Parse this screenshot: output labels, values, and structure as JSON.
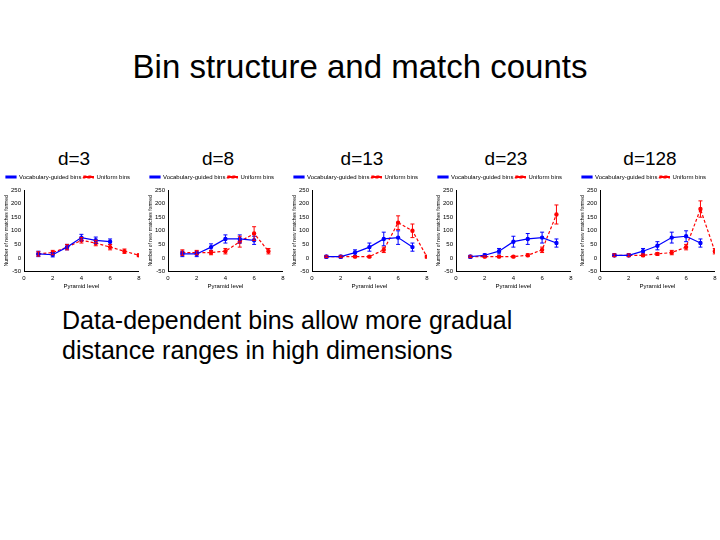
{
  "header": {
    "title": "Bin structure and match counts"
  },
  "caption": [
    "Data-dependent bins allow more gradual",
    "distance ranges in high dimensions"
  ],
  "chart_data": [
    {
      "type": "line",
      "title": "d=3",
      "x_label": "Pyramid level",
      "y_label": "Number of new matches formed",
      "x": [
        1,
        2,
        3,
        4,
        5,
        6,
        7,
        8
      ],
      "series": [
        {
          "name": "Vocabulary-guided bins",
          "color": "#0000ff",
          "line_style": "solid",
          "marker": "circle",
          "values": [
            15,
            12,
            40,
            75,
            65,
            60,
            null,
            null
          ],
          "error": [
            10,
            8,
            10,
            12,
            12,
            10,
            null,
            null
          ]
        },
        {
          "name": "Uniform bins",
          "color": "#ff0000",
          "line_style": "dashed",
          "marker": "circle",
          "values": [
            15,
            20,
            40,
            65,
            55,
            40,
            25,
            10
          ],
          "error": [
            8,
            8,
            10,
            10,
            10,
            10,
            8,
            5
          ]
        }
      ],
      "xlim": [
        0,
        8
      ],
      "xticks": [
        0,
        2,
        4,
        6,
        8
      ],
      "ylim": [
        -50,
        250
      ],
      "yticks": [
        -50,
        0,
        50,
        100,
        150,
        200,
        250
      ],
      "grid": false,
      "legend": "upper left"
    },
    {
      "type": "line",
      "title": "d=8",
      "x_label": "Pyramid level",
      "y_label": "Number of new matches formed",
      "x": [
        1,
        2,
        3,
        4,
        5,
        6,
        7,
        8
      ],
      "series": [
        {
          "name": "Vocabulary-guided bins",
          "color": "#0000ff",
          "line_style": "solid",
          "marker": "circle",
          "values": [
            15,
            15,
            40,
            70,
            70,
            65,
            null,
            null
          ],
          "error": [
            10,
            10,
            12,
            15,
            15,
            15,
            null,
            null
          ]
        },
        {
          "name": "Uniform bins",
          "color": "#ff0000",
          "line_style": "dashed",
          "marker": "circle",
          "values": [
            20,
            20,
            20,
            25,
            60,
            90,
            25,
            null
          ],
          "error": [
            10,
            8,
            8,
            10,
            20,
            25,
            10,
            null
          ]
        }
      ],
      "xlim": [
        0,
        8
      ],
      "xticks": [
        0,
        2,
        4,
        6,
        8
      ],
      "ylim": [
        -50,
        250
      ],
      "yticks": [
        -50,
        0,
        50,
        100,
        150,
        200,
        250
      ],
      "grid": false,
      "legend": "upper left"
    },
    {
      "type": "line",
      "title": "d=13",
      "x_label": "Pyramid level",
      "y_label": "Number of new matches formed",
      "x": [
        1,
        2,
        3,
        4,
        5,
        6,
        7,
        8
      ],
      "series": [
        {
          "name": "Vocabulary-guided bins",
          "color": "#0000ff",
          "line_style": "solid",
          "marker": "circle",
          "values": [
            5,
            5,
            20,
            40,
            70,
            75,
            40,
            null
          ],
          "error": [
            5,
            5,
            10,
            15,
            25,
            25,
            15,
            null
          ]
        },
        {
          "name": "Uniform bins",
          "color": "#ff0000",
          "line_style": "dashed",
          "marker": "circle",
          "values": [
            5,
            5,
            5,
            5,
            30,
            130,
            100,
            5
          ],
          "error": [
            3,
            3,
            3,
            3,
            10,
            25,
            25,
            5
          ]
        }
      ],
      "xlim": [
        0,
        8
      ],
      "xticks": [
        0,
        2,
        4,
        6,
        8
      ],
      "ylim": [
        -50,
        250
      ],
      "yticks": [
        -50,
        0,
        50,
        100,
        150,
        200,
        250
      ],
      "grid": false,
      "legend": "upper left"
    },
    {
      "type": "line",
      "title": "d=23",
      "x_label": "Pyramid level",
      "y_label": "Number of new matches formed",
      "x": [
        1,
        2,
        3,
        4,
        5,
        6,
        7,
        8
      ],
      "series": [
        {
          "name": "Vocabulary-guided bins",
          "color": "#0000ff",
          "line_style": "solid",
          "marker": "circle",
          "values": [
            5,
            10,
            25,
            60,
            70,
            75,
            55,
            null
          ],
          "error": [
            5,
            5,
            10,
            20,
            20,
            20,
            15,
            null
          ]
        },
        {
          "name": "Uniform bins",
          "color": "#ff0000",
          "line_style": "dashed",
          "marker": "circle",
          "values": [
            5,
            5,
            5,
            5,
            10,
            30,
            160,
            null
          ],
          "error": [
            3,
            3,
            3,
            3,
            5,
            10,
            35,
            null
          ]
        }
      ],
      "xlim": [
        0,
        8
      ],
      "xticks": [
        0,
        2,
        4,
        6,
        8
      ],
      "ylim": [
        -50,
        250
      ],
      "yticks": [
        -50,
        0,
        50,
        100,
        150,
        200,
        250
      ],
      "grid": false,
      "legend": "upper left"
    },
    {
      "type": "line",
      "title": "d=128",
      "x_label": "Pyramid level",
      "y_label": "Number of new matches formed",
      "x": [
        1,
        2,
        3,
        4,
        5,
        6,
        7,
        8
      ],
      "series": [
        {
          "name": "Vocabulary-guided bins",
          "color": "#0000ff",
          "line_style": "solid",
          "marker": "circle",
          "values": [
            10,
            10,
            25,
            45,
            75,
            80,
            55,
            null
          ],
          "error": [
            5,
            5,
            10,
            15,
            20,
            20,
            15,
            null
          ]
        },
        {
          "name": "Uniform bins",
          "color": "#ff0000",
          "line_style": "dashed",
          "marker": "circle",
          "values": [
            10,
            10,
            10,
            15,
            20,
            40,
            180,
            25
          ],
          "error": [
            5,
            5,
            5,
            5,
            8,
            10,
            30,
            10
          ]
        }
      ],
      "xlim": [
        0,
        8
      ],
      "xticks": [
        0,
        2,
        4,
        6,
        8
      ],
      "ylim": [
        -50,
        250
      ],
      "yticks": [
        -50,
        0,
        50,
        100,
        150,
        200,
        250
      ],
      "grid": false,
      "legend": "upper left"
    }
  ]
}
